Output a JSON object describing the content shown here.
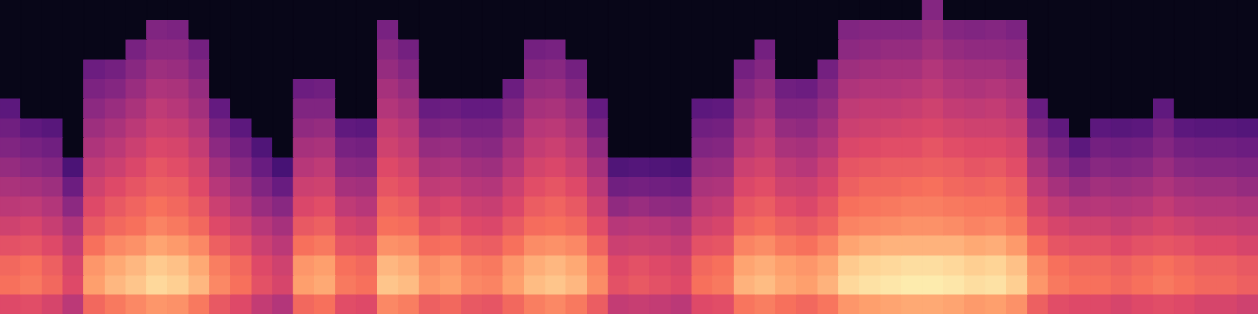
{
  "chart_data": {
    "type": "heatmap",
    "tick_labels": false,
    "zlim": [
      0,
      100
    ],
    "cells": [
      [
        4,
        4,
        4,
        4,
        4,
        4,
        4,
        4,
        4,
        4,
        4,
        4,
        4,
        4,
        4,
        4,
        4,
        4,
        4,
        4,
        4,
        4,
        4,
        4,
        4,
        4,
        4,
        4,
        4,
        4,
        4,
        4,
        4,
        4,
        4,
        4,
        4,
        4,
        4,
        4,
        4,
        4,
        4,
        4,
        38,
        4,
        4,
        4,
        4,
        4,
        4,
        4,
        4,
        4,
        4,
        4,
        4,
        4,
        4,
        4
      ],
      [
        4,
        4,
        4,
        4,
        4,
        4,
        4,
        37,
        36,
        4,
        4,
        4,
        4,
        4,
        4,
        4,
        4,
        4,
        35,
        4,
        4,
        4,
        4,
        4,
        4,
        4,
        4,
        4,
        4,
        4,
        4,
        4,
        4,
        4,
        4,
        4,
        4,
        4,
        4,
        4,
        37,
        38,
        38,
        38,
        42,
        38,
        37,
        38,
        36,
        4,
        4,
        4,
        4,
        4,
        4,
        4,
        4,
        4,
        4,
        4
      ],
      [
        4,
        4,
        4,
        4,
        4,
        4,
        35,
        40,
        40,
        34,
        4,
        4,
        4,
        4,
        4,
        4,
        4,
        4,
        39,
        34,
        4,
        4,
        4,
        4,
        4,
        34,
        35,
        4,
        4,
        4,
        4,
        4,
        4,
        4,
        4,
        4,
        34,
        4,
        4,
        4,
        40,
        41,
        42,
        42,
        45,
        42,
        41,
        41,
        40,
        4,
        4,
        4,
        4,
        4,
        4,
        4,
        4,
        4,
        4,
        4
      ],
      [
        4,
        4,
        4,
        4,
        32,
        34,
        39,
        44,
        43,
        38,
        4,
        4,
        4,
        4,
        4,
        4,
        4,
        4,
        42,
        38,
        4,
        4,
        4,
        4,
        4,
        38,
        39,
        34,
        4,
        4,
        4,
        4,
        4,
        4,
        4,
        34,
        38,
        4,
        4,
        34,
        44,
        45,
        46,
        46,
        49,
        46,
        45,
        45,
        43,
        4,
        4,
        4,
        4,
        4,
        4,
        4,
        4,
        4,
        4,
        4
      ],
      [
        4,
        4,
        4,
        4,
        36,
        38,
        43,
        48,
        47,
        42,
        4,
        4,
        4,
        4,
        32,
        33,
        4,
        4,
        46,
        42,
        4,
        4,
        4,
        4,
        32,
        42,
        43,
        38,
        4,
        4,
        4,
        4,
        4,
        4,
        4,
        38,
        42,
        33,
        32,
        38,
        48,
        49,
        49,
        50,
        52,
        49,
        48,
        49,
        47,
        4,
        4,
        4,
        4,
        4,
        4,
        4,
        4,
        4,
        4,
        4
      ],
      [
        28,
        4,
        4,
        4,
        40,
        43,
        47,
        52,
        50,
        45,
        30,
        4,
        4,
        4,
        37,
        37,
        4,
        4,
        49,
        46,
        31,
        32,
        30,
        30,
        37,
        46,
        47,
        43,
        30,
        4,
        4,
        4,
        4,
        28,
        29,
        42,
        46,
        37,
        37,
        42,
        52,
        53,
        53,
        54,
        56,
        53,
        52,
        53,
        50,
        31,
        4,
        4,
        4,
        4,
        4,
        29,
        4,
        4,
        4,
        4
      ],
      [
        33,
        29,
        27,
        4,
        44,
        47,
        51,
        55,
        54,
        49,
        35,
        28,
        4,
        4,
        41,
        42,
        29,
        28,
        53,
        50,
        36,
        37,
        35,
        35,
        41,
        50,
        51,
        47,
        35,
        4,
        4,
        4,
        4,
        33,
        34,
        46,
        50,
        42,
        41,
        46,
        55,
        56,
        57,
        58,
        59,
        57,
        56,
        56,
        54,
        36,
        29,
        4,
        28,
        27,
        28,
        34,
        28,
        27,
        27,
        26
      ],
      [
        37,
        35,
        33,
        4,
        48,
        51,
        55,
        59,
        58,
        53,
        40,
        34,
        25,
        4,
        46,
        47,
        35,
        34,
        56,
        53,
        42,
        43,
        40,
        39,
        46,
        53,
        55,
        51,
        41,
        4,
        4,
        4,
        4,
        37,
        38,
        50,
        53,
        47,
        46,
        50,
        59,
        60,
        61,
        61,
        63,
        61,
        60,
        60,
        58,
        42,
        35,
        28,
        34,
        33,
        34,
        38,
        34,
        33,
        33,
        32
      ],
      [
        42,
        40,
        38,
        24,
        52,
        55,
        59,
        63,
        61,
        57,
        45,
        39,
        31,
        23,
        50,
        52,
        40,
        39,
        60,
        57,
        47,
        48,
        45,
        44,
        50,
        57,
        59,
        55,
        46,
        25,
        26,
        25,
        24,
        42,
        43,
        55,
        57,
        52,
        50,
        55,
        63,
        64,
        65,
        65,
        66,
        65,
        63,
        64,
        61,
        47,
        40,
        35,
        39,
        38,
        39,
        43,
        39,
        38,
        38,
        37
      ],
      [
        47,
        46,
        44,
        32,
        56,
        60,
        63,
        66,
        65,
        60,
        50,
        45,
        37,
        31,
        55,
        56,
        46,
        45,
        63,
        61,
        52,
        53,
        50,
        49,
        55,
        61,
        63,
        60,
        51,
        33,
        34,
        33,
        32,
        47,
        48,
        59,
        61,
        56,
        55,
        59,
        66,
        68,
        68,
        69,
        70,
        68,
        67,
        68,
        65,
        52,
        46,
        42,
        45,
        44,
        45,
        48,
        45,
        44,
        44,
        42
      ],
      [
        51,
        52,
        49,
        40,
        60,
        64,
        67,
        70,
        68,
        64,
        55,
        50,
        43,
        39,
        59,
        61,
        52,
        50,
        67,
        65,
        57,
        59,
        55,
        54,
        59,
        65,
        67,
        64,
        56,
        41,
        43,
        41,
        40,
        51,
        53,
        63,
        65,
        61,
        59,
        63,
        70,
        71,
        72,
        73,
        73,
        72,
        71,
        71,
        68,
        57,
        52,
        49,
        50,
        49,
        50,
        53,
        50,
        49,
        49,
        48
      ],
      [
        56,
        58,
        54,
        48,
        64,
        68,
        70,
        74,
        72,
        68,
        60,
        56,
        50,
        46,
        64,
        66,
        58,
        56,
        70,
        69,
        62,
        64,
        60,
        59,
        64,
        69,
        70,
        68,
        61,
        50,
        51,
        50,
        48,
        56,
        58,
        67,
        69,
        66,
        64,
        67,
        74,
        75,
        76,
        77,
        77,
        76,
        74,
        75,
        72,
        62,
        58,
        56,
        56,
        54,
        56,
        58,
        56,
        54,
        54,
        53
      ],
      [
        62,
        63,
        60,
        53,
        70,
        75,
        77,
        81,
        79,
        75,
        66,
        62,
        55,
        51,
        70,
        72,
        63,
        62,
        77,
        76,
        69,
        70,
        66,
        65,
        70,
        76,
        77,
        75,
        67,
        55,
        56,
        55,
        53,
        62,
        63,
        74,
        76,
        72,
        70,
        74,
        81,
        83,
        84,
        84,
        84,
        84,
        82,
        83,
        79,
        69,
        63,
        62,
        62,
        60,
        62,
        63,
        62,
        60,
        60,
        58
      ],
      [
        68,
        70,
        66,
        58,
        78,
        82,
        85,
        89,
        87,
        82,
        73,
        68,
        60,
        56,
        78,
        80,
        70,
        68,
        85,
        83,
        76,
        78,
        73,
        72,
        78,
        83,
        85,
        82,
        74,
        60,
        62,
        60,
        58,
        68,
        70,
        81,
        83,
        80,
        78,
        81,
        89,
        91,
        92,
        93,
        93,
        92,
        90,
        91,
        87,
        76,
        70,
        68,
        68,
        66,
        68,
        70,
        68,
        66,
        66,
        64
      ],
      [
        70,
        72,
        68,
        60,
        80,
        85,
        88,
        92,
        90,
        85,
        75,
        70,
        62,
        58,
        80,
        82,
        72,
        70,
        88,
        86,
        78,
        80,
        75,
        74,
        80,
        86,
        88,
        85,
        76,
        62,
        64,
        62,
        60,
        70,
        72,
        84,
        86,
        82,
        80,
        84,
        92,
        94,
        95,
        96,
        96,
        95,
        93,
        94,
        90,
        78,
        72,
        70,
        70,
        68,
        70,
        72,
        70,
        68,
        68,
        66
      ],
      [
        60,
        61,
        58,
        51,
        68,
        72,
        75,
        78,
        77,
        72,
        64,
        60,
        53,
        49,
        68,
        70,
        61,
        60,
        75,
        73,
        66,
        68,
        64,
        63,
        68,
        73,
        75,
        72,
        65,
        53,
        54,
        53,
        51,
        60,
        61,
        71,
        73,
        70,
        68,
        71,
        78,
        80,
        81,
        82,
        82,
        81,
        79,
        80,
        77,
        66,
        61,
        60,
        60,
        58,
        60,
        61,
        60,
        58,
        58,
        56
      ]
    ]
  }
}
